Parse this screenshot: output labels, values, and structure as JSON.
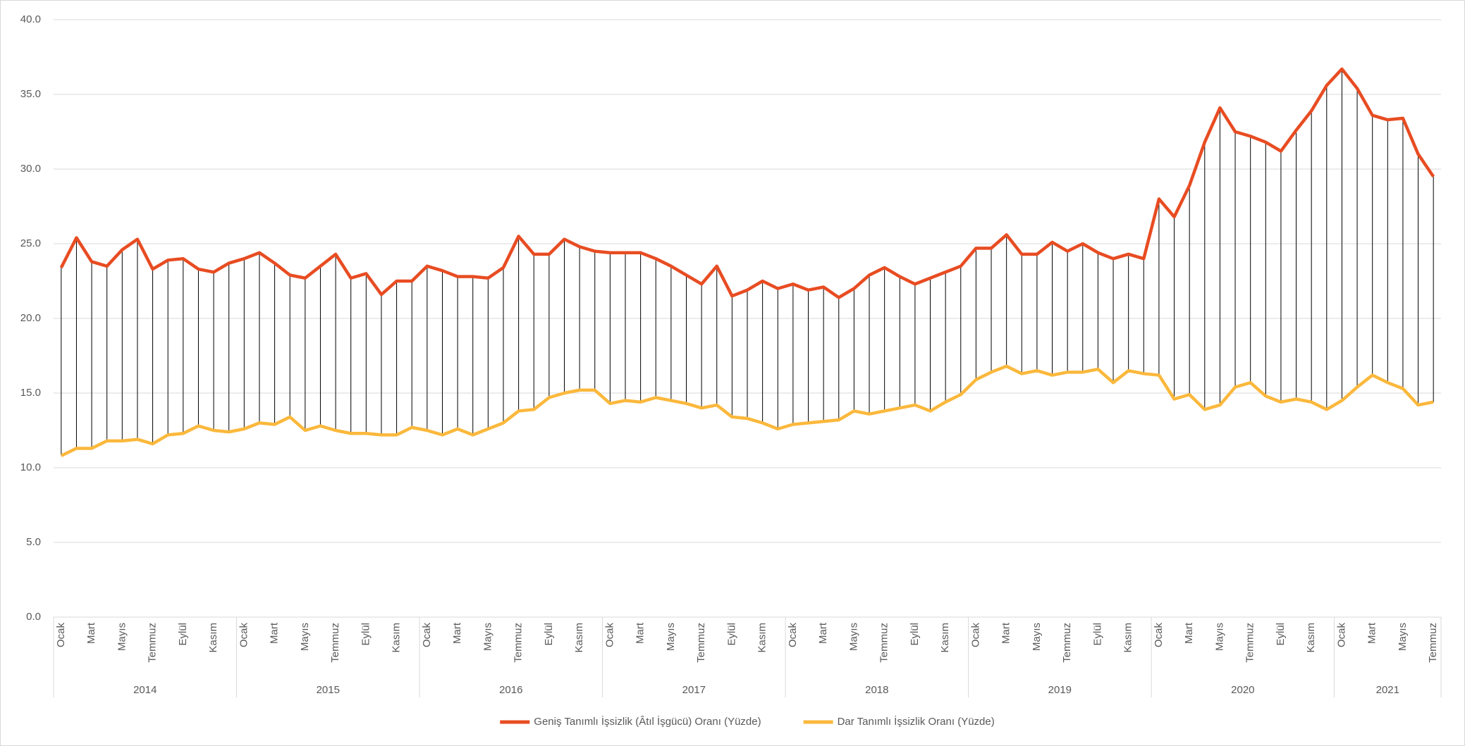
{
  "chart_data": {
    "type": "line",
    "categories": [
      "Ocak",
      null,
      "Mart",
      null,
      "Mayıs",
      null,
      "Temmuz",
      null,
      "Eylül",
      null,
      "Kasım",
      null,
      "Ocak",
      null,
      "Mart",
      null,
      "Mayıs",
      null,
      "Temmuz",
      null,
      "Eylül",
      null,
      "Kasım",
      null,
      "Ocak",
      null,
      "Mart",
      null,
      "Mayıs",
      null,
      "Temmuz",
      null,
      "Eylül",
      null,
      "Kasım",
      null,
      "Ocak",
      null,
      "Mart",
      null,
      "Mayıs",
      null,
      "Temmuz",
      null,
      "Eylül",
      null,
      "Kasım",
      null,
      "Ocak",
      null,
      "Mart",
      null,
      "Mayıs",
      null,
      "Temmuz",
      null,
      "Eylül",
      null,
      "Kasım",
      null,
      "Ocak",
      null,
      "Mart",
      null,
      "Mayıs",
      null,
      "Temmuz",
      null,
      "Eylül",
      null,
      "Kasım",
      null,
      "Ocak",
      null,
      "Mart",
      null,
      "Mayıs",
      null,
      "Temmuz",
      null,
      "Eylül",
      null,
      "Kasım",
      null,
      "Ocak",
      null,
      "Mart",
      null,
      "Mayıs",
      null,
      "Temmuz"
    ],
    "years": [
      "2014",
      "2015",
      "2016",
      "2017",
      "2018",
      "2019",
      "2020",
      "2021"
    ],
    "series": [
      {
        "name": "Geniş Tanımlı İşsizlik (Âtıl İşgücü) Oranı (Yüzde)",
        "color": "#e84c22",
        "values": [
          23.4,
          25.4,
          23.8,
          23.5,
          24.6,
          25.3,
          23.3,
          23.9,
          24.0,
          23.3,
          23.1,
          23.7,
          24.0,
          24.4,
          23.7,
          22.9,
          22.7,
          23.5,
          24.3,
          22.7,
          23.0,
          21.6,
          22.5,
          22.5,
          23.5,
          23.2,
          22.8,
          22.8,
          22.7,
          23.4,
          25.5,
          24.3,
          24.3,
          25.3,
          24.8,
          24.5,
          24.4,
          24.4,
          24.4,
          24.0,
          23.5,
          22.9,
          22.3,
          23.5,
          21.5,
          21.9,
          22.5,
          22.0,
          22.3,
          21.9,
          22.1,
          21.4,
          22.0,
          22.9,
          23.4,
          22.8,
          22.3,
          22.7,
          23.1,
          23.5,
          24.7,
          24.7,
          25.6,
          24.3,
          24.3,
          25.1,
          24.5,
          25.0,
          24.4,
          24.0,
          24.3,
          24.0,
          28.0,
          26.8,
          28.9,
          31.8,
          34.1,
          32.5,
          32.2,
          31.8,
          31.2,
          32.6,
          33.9,
          35.6,
          36.7,
          35.4,
          33.6,
          33.3,
          33.4,
          31.0,
          29.5
        ]
      },
      {
        "name": "Dar Tanımlı İşsizlik Oranı (Yüzde)",
        "color": "#fbb83c",
        "values": [
          10.8,
          11.3,
          11.3,
          11.8,
          11.8,
          11.9,
          11.6,
          12.2,
          12.3,
          12.8,
          12.5,
          12.4,
          12.6,
          13.0,
          12.9,
          13.4,
          12.5,
          12.8,
          12.5,
          12.3,
          12.3,
          12.2,
          12.2,
          12.7,
          12.5,
          12.2,
          12.6,
          12.2,
          12.6,
          13.0,
          13.8,
          13.9,
          14.7,
          15.0,
          15.2,
          15.2,
          14.3,
          14.5,
          14.4,
          14.7,
          14.5,
          14.3,
          14.0,
          14.2,
          13.4,
          13.3,
          13.0,
          12.6,
          12.9,
          13.0,
          13.1,
          13.2,
          13.8,
          13.6,
          13.8,
          14.0,
          14.2,
          13.8,
          14.4,
          14.9,
          15.9,
          16.4,
          16.8,
          16.3,
          16.5,
          16.2,
          16.4,
          16.4,
          16.6,
          15.7,
          16.5,
          16.3,
          16.2,
          14.6,
          14.9,
          13.9,
          14.2,
          15.4,
          15.7,
          14.8,
          14.4,
          14.6,
          14.4,
          13.9,
          14.5,
          15.4,
          16.2,
          15.7,
          15.3,
          14.2,
          14.4
        ]
      }
    ],
    "ylim": [
      0,
      40
    ],
    "yticks": [
      {
        "value": 0,
        "label": "0.0"
      },
      {
        "value": 5,
        "label": "5.0"
      },
      {
        "value": 10,
        "label": "10.0"
      },
      {
        "value": 15,
        "label": "15.0"
      },
      {
        "value": 20,
        "label": "20.0"
      },
      {
        "value": 25,
        "label": "25.0"
      },
      {
        "value": 30,
        "label": "30.0"
      },
      {
        "value": 35,
        "label": "35.0"
      },
      {
        "value": 40,
        "label": "40.0"
      }
    ],
    "grid": true,
    "high_low_lines": true,
    "legend": "bottom"
  }
}
